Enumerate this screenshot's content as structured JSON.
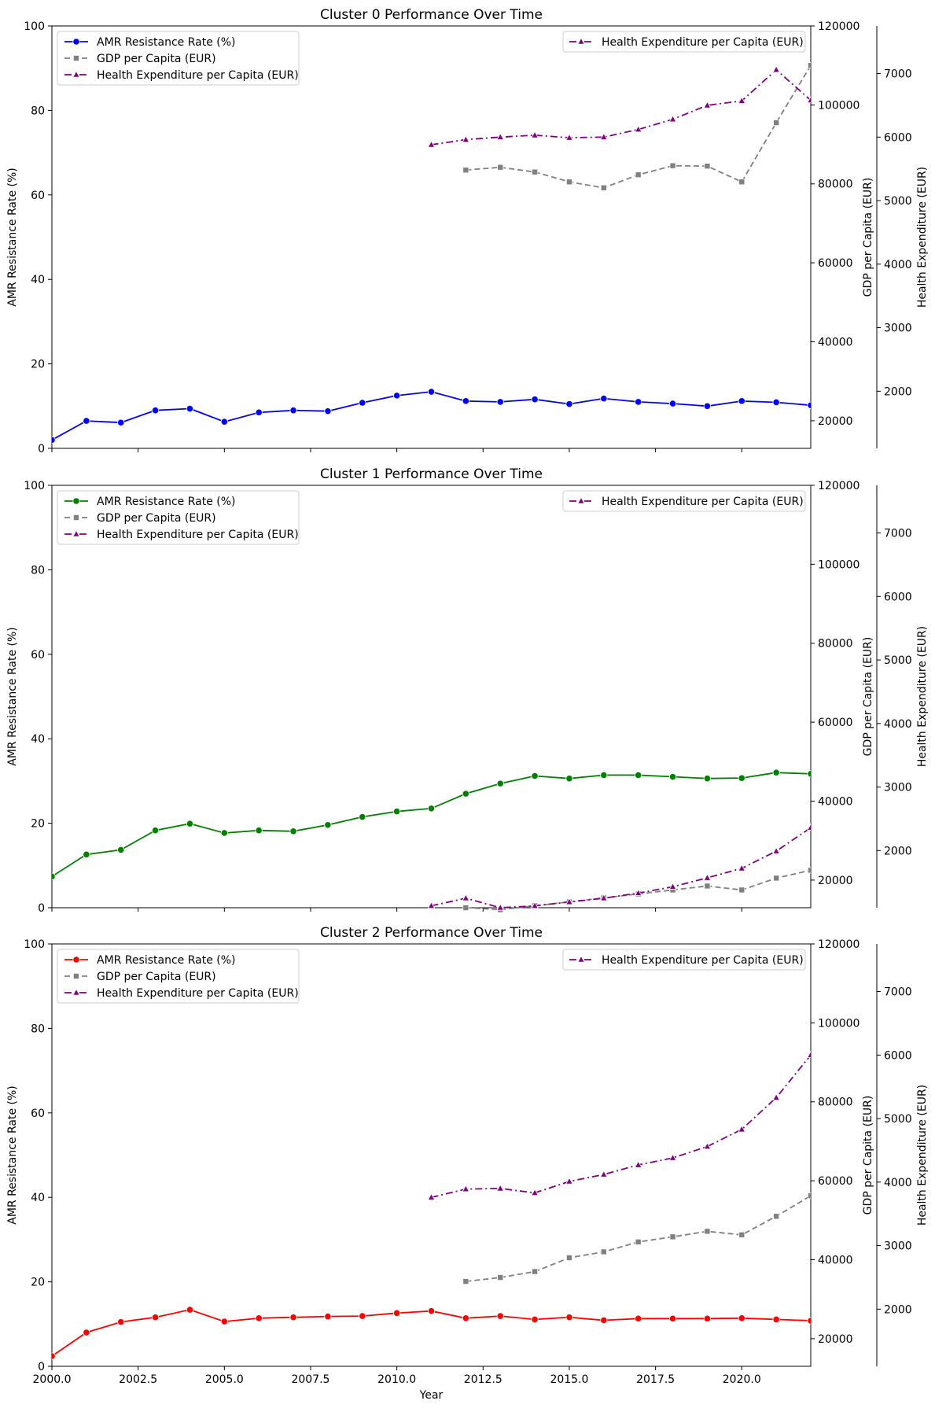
{
  "chart_data": [
    {
      "type": "line",
      "title": "Cluster 0 Performance Over Time",
      "xlabel": "",
      "ylabel": "AMR Resistance Rate (%)",
      "y2label": "GDP per Capita (EUR)",
      "y3label": "Health Expenditure (EUR)",
      "xlim": [
        2000,
        2022
      ],
      "ylim": [
        0,
        100
      ],
      "y2lim": [
        13000,
        120000
      ],
      "y3lim": [
        1100,
        7750
      ],
      "xticks": [
        2000,
        2002.5,
        2005,
        2007.5,
        2010,
        2012.5,
        2015,
        2017.5,
        2020
      ],
      "xtick_labels": [],
      "yticks": [
        0,
        20,
        40,
        60,
        80,
        100
      ],
      "y2ticks": [
        20000,
        40000,
        60000,
        80000,
        100000,
        120000
      ],
      "y3ticks": [
        2000,
        3000,
        4000,
        5000,
        6000,
        7000
      ],
      "legend_left": [
        "AMR Resistance Rate (%)",
        "GDP per Capita (EUR)",
        "Health Expenditure per Capita (EUR)"
      ],
      "legend_right": [
        "Health Expenditure per Capita (EUR)"
      ],
      "series": [
        {
          "name": "AMR Resistance Rate (%)",
          "axis": "left",
          "color": "#0000ff",
          "marker": "circle",
          "dash": "solid",
          "x": [
            2000,
            2001,
            2002,
            2003,
            2004,
            2005,
            2006,
            2007,
            2008,
            2009,
            2010,
            2011,
            2012,
            2013,
            2014,
            2015,
            2016,
            2017,
            2018,
            2019,
            2020,
            2021,
            2022
          ],
          "values": [
            2.0,
            6.5,
            6.1,
            9.0,
            9.4,
            6.3,
            8.5,
            9.0,
            8.8,
            10.8,
            12.5,
            13.4,
            11.2,
            11.0,
            11.6,
            10.5,
            11.8,
            11.0,
            10.6,
            10.0,
            11.2,
            10.9,
            10.2
          ]
        },
        {
          "name": "GDP per Capita (EUR)",
          "axis": "right1",
          "color": "#808080",
          "marker": "square",
          "dash": "dashed",
          "x": [
            2012,
            2013,
            2014,
            2015,
            2016,
            2017,
            2018,
            2019,
            2020,
            2021,
            2022
          ],
          "values": [
            83500,
            84200,
            83000,
            80500,
            79000,
            82300,
            84600,
            84500,
            80500,
            95500,
            110000
          ]
        },
        {
          "name": "Health Expenditure per Capita (EUR)",
          "axis": "right2",
          "color": "#800080",
          "marker": "triangle",
          "dash": "dashdot",
          "x": [
            2011,
            2012,
            2013,
            2014,
            2015,
            2016,
            2017,
            2018,
            2019,
            2020,
            2021,
            2022
          ],
          "values": [
            5880,
            5960,
            6000,
            6030,
            5990,
            6000,
            6120,
            6280,
            6500,
            6570,
            7060,
            6580
          ]
        }
      ]
    },
    {
      "type": "line",
      "title": "Cluster 1 Performance Over Time",
      "xlabel": "",
      "ylabel": "AMR Resistance Rate (%)",
      "y2label": "GDP per Capita (EUR)",
      "y3label": "Health Expenditure (EUR)",
      "xlim": [
        2000,
        2022
      ],
      "ylim": [
        0,
        100
      ],
      "y2lim": [
        13000,
        120000
      ],
      "y3lim": [
        1100,
        7750
      ],
      "xticks": [
        2000,
        2002.5,
        2005,
        2007.5,
        2010,
        2012.5,
        2015,
        2017.5,
        2020
      ],
      "xtick_labels": [],
      "yticks": [
        0,
        20,
        40,
        60,
        80,
        100
      ],
      "y2ticks": [
        20000,
        40000,
        60000,
        80000,
        100000,
        120000
      ],
      "y3ticks": [
        2000,
        3000,
        4000,
        5000,
        6000,
        7000
      ],
      "legend_left": [
        "AMR Resistance Rate (%)",
        "GDP per Capita (EUR)",
        "Health Expenditure per Capita (EUR)"
      ],
      "legend_right": [
        "Health Expenditure per Capita (EUR)"
      ],
      "series": [
        {
          "name": "AMR Resistance Rate (%)",
          "axis": "left",
          "color": "#008000",
          "marker": "circle",
          "dash": "solid",
          "x": [
            2000,
            2001,
            2002,
            2003,
            2004,
            2005,
            2006,
            2007,
            2008,
            2009,
            2010,
            2011,
            2012,
            2013,
            2014,
            2015,
            2016,
            2017,
            2018,
            2019,
            2020,
            2021,
            2022
          ],
          "values": [
            7.4,
            12.6,
            13.7,
            18.3,
            19.9,
            17.7,
            18.3,
            18.1,
            19.6,
            21.5,
            22.8,
            23.5,
            27.0,
            29.4,
            31.2,
            30.6,
            31.4,
            31.4,
            31.0,
            30.6,
            30.7,
            32.0,
            31.7
          ]
        },
        {
          "name": "GDP per Capita (EUR)",
          "axis": "right1",
          "color": "#808080",
          "marker": "square",
          "dash": "dashed",
          "x": [
            2012,
            2013,
            2014,
            2015,
            2016,
            2017,
            2018,
            2019,
            2020,
            2021,
            2022
          ],
          "values": [
            13000,
            12500,
            13500,
            14500,
            15500,
            16500,
            17500,
            18500,
            17500,
            20500,
            22500
          ]
        },
        {
          "name": "Health Expenditure per Capita (EUR)",
          "axis": "right2",
          "color": "#800080",
          "marker": "triangle",
          "dash": "dashdot",
          "x": [
            2011,
            2012,
            2013,
            2014,
            2015,
            2016,
            2017,
            2018,
            2019,
            2020,
            2021,
            2022
          ],
          "values": [
            1130,
            1250,
            1100,
            1130,
            1190,
            1250,
            1330,
            1430,
            1570,
            1720,
            1990,
            2360
          ]
        }
      ]
    },
    {
      "type": "line",
      "title": "Cluster 2 Performance Over Time",
      "xlabel": "Year",
      "ylabel": "AMR Resistance Rate (%)",
      "y2label": "GDP per Capita (EUR)",
      "y3label": "Health Expenditure (EUR)",
      "xlim": [
        2000,
        2022
      ],
      "ylim": [
        0,
        100
      ],
      "y2lim": [
        13000,
        120000
      ],
      "y3lim": [
        1100,
        7750
      ],
      "xticks": [
        2000,
        2002.5,
        2005,
        2007.5,
        2010,
        2012.5,
        2015,
        2017.5,
        2020
      ],
      "xtick_labels": [
        "2000.0",
        "2002.5",
        "2005.0",
        "2007.5",
        "2010.0",
        "2012.5",
        "2015.0",
        "2017.5",
        "2020.0"
      ],
      "yticks": [
        0,
        20,
        40,
        60,
        80,
        100
      ],
      "y2ticks": [
        20000,
        40000,
        60000,
        80000,
        100000,
        120000
      ],
      "y3ticks": [
        2000,
        3000,
        4000,
        5000,
        6000,
        7000
      ],
      "legend_left": [
        "AMR Resistance Rate (%)",
        "GDP per Capita (EUR)",
        "Health Expenditure per Capita (EUR)"
      ],
      "legend_right": [
        "Health Expenditure per Capita (EUR)"
      ],
      "series": [
        {
          "name": "AMR Resistance Rate (%)",
          "axis": "left",
          "color": "#ff0000",
          "marker": "circle",
          "dash": "solid",
          "x": [
            2000,
            2001,
            2002,
            2003,
            2004,
            2005,
            2006,
            2007,
            2008,
            2009,
            2010,
            2011,
            2012,
            2013,
            2014,
            2015,
            2016,
            2017,
            2018,
            2019,
            2020,
            2021,
            2022
          ],
          "values": [
            2.4,
            8.0,
            10.5,
            11.6,
            13.4,
            10.6,
            11.4,
            11.6,
            11.8,
            11.9,
            12.6,
            13.1,
            11.4,
            11.9,
            11.1,
            11.6,
            10.9,
            11.3,
            11.3,
            11.3,
            11.4,
            11.1,
            10.8
          ]
        },
        {
          "name": "GDP per Capita (EUR)",
          "axis": "right1",
          "color": "#808080",
          "marker": "square",
          "dash": "dashed",
          "x": [
            2012,
            2013,
            2014,
            2015,
            2016,
            2017,
            2018,
            2019,
            2020,
            2021,
            2022
          ],
          "values": [
            34500,
            35500,
            37000,
            40500,
            42000,
            44500,
            45800,
            47200,
            46300,
            51000,
            56200
          ]
        },
        {
          "name": "Health Expenditure per Capita (EUR)",
          "axis": "right2",
          "color": "#800080",
          "marker": "triangle",
          "dash": "dashdot",
          "x": [
            2011,
            2012,
            2013,
            2014,
            2015,
            2016,
            2017,
            2018,
            2019,
            2020,
            2021,
            2022
          ],
          "values": [
            3760,
            3890,
            3900,
            3830,
            4010,
            4120,
            4270,
            4380,
            4560,
            4830,
            5330,
            6000
          ]
        }
      ]
    }
  ]
}
